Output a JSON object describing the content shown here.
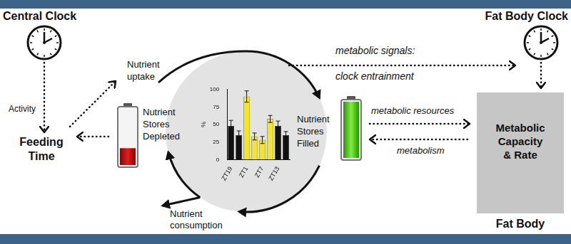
{
  "texts": {
    "central_clock": "Central Clock",
    "activity": "Activity",
    "feeding_time": [
      "Feeding",
      "Time"
    ],
    "nutrient_uptake": [
      "Nutrient",
      "uptake"
    ],
    "stores_depleted": [
      "Nutrient",
      "Stores",
      "Depleted"
    ],
    "stores_filled": [
      "Nutrient",
      "Stores",
      "Filled"
    ],
    "nutrient_consumption": [
      "Nutrient",
      "consumption"
    ],
    "metabolic_signals": "metabolic signals:",
    "clock_entrainment": "clock entrainment",
    "fat_body_clock": "Fat Body Clock",
    "metabolic_resources": "metabolic resources",
    "metabolism": "metabolism",
    "metabolic_capacity": [
      "Metabolic",
      "Capacity",
      "& Rate"
    ],
    "fat_body": "Fat Body"
  },
  "chart_data": {
    "type": "bar",
    "categories": [
      "ZT19",
      null,
      "ZT1",
      null,
      "ZT7",
      null,
      "ZT13",
      null
    ],
    "values": [
      48,
      35,
      90,
      33,
      28,
      58,
      48,
      35
    ],
    "errors": [
      8,
      6,
      8,
      5,
      5,
      5,
      7,
      5
    ],
    "colors": [
      "#111111",
      "#111111",
      "#f2e52b",
      "#f2e52b",
      "#f2e52b",
      "#f2e52b",
      "#111111",
      "#111111"
    ],
    "y_label": "%",
    "ylim": [
      0,
      100
    ],
    "yticks": [
      0,
      25,
      50,
      75,
      100
    ],
    "grid": false
  }
}
